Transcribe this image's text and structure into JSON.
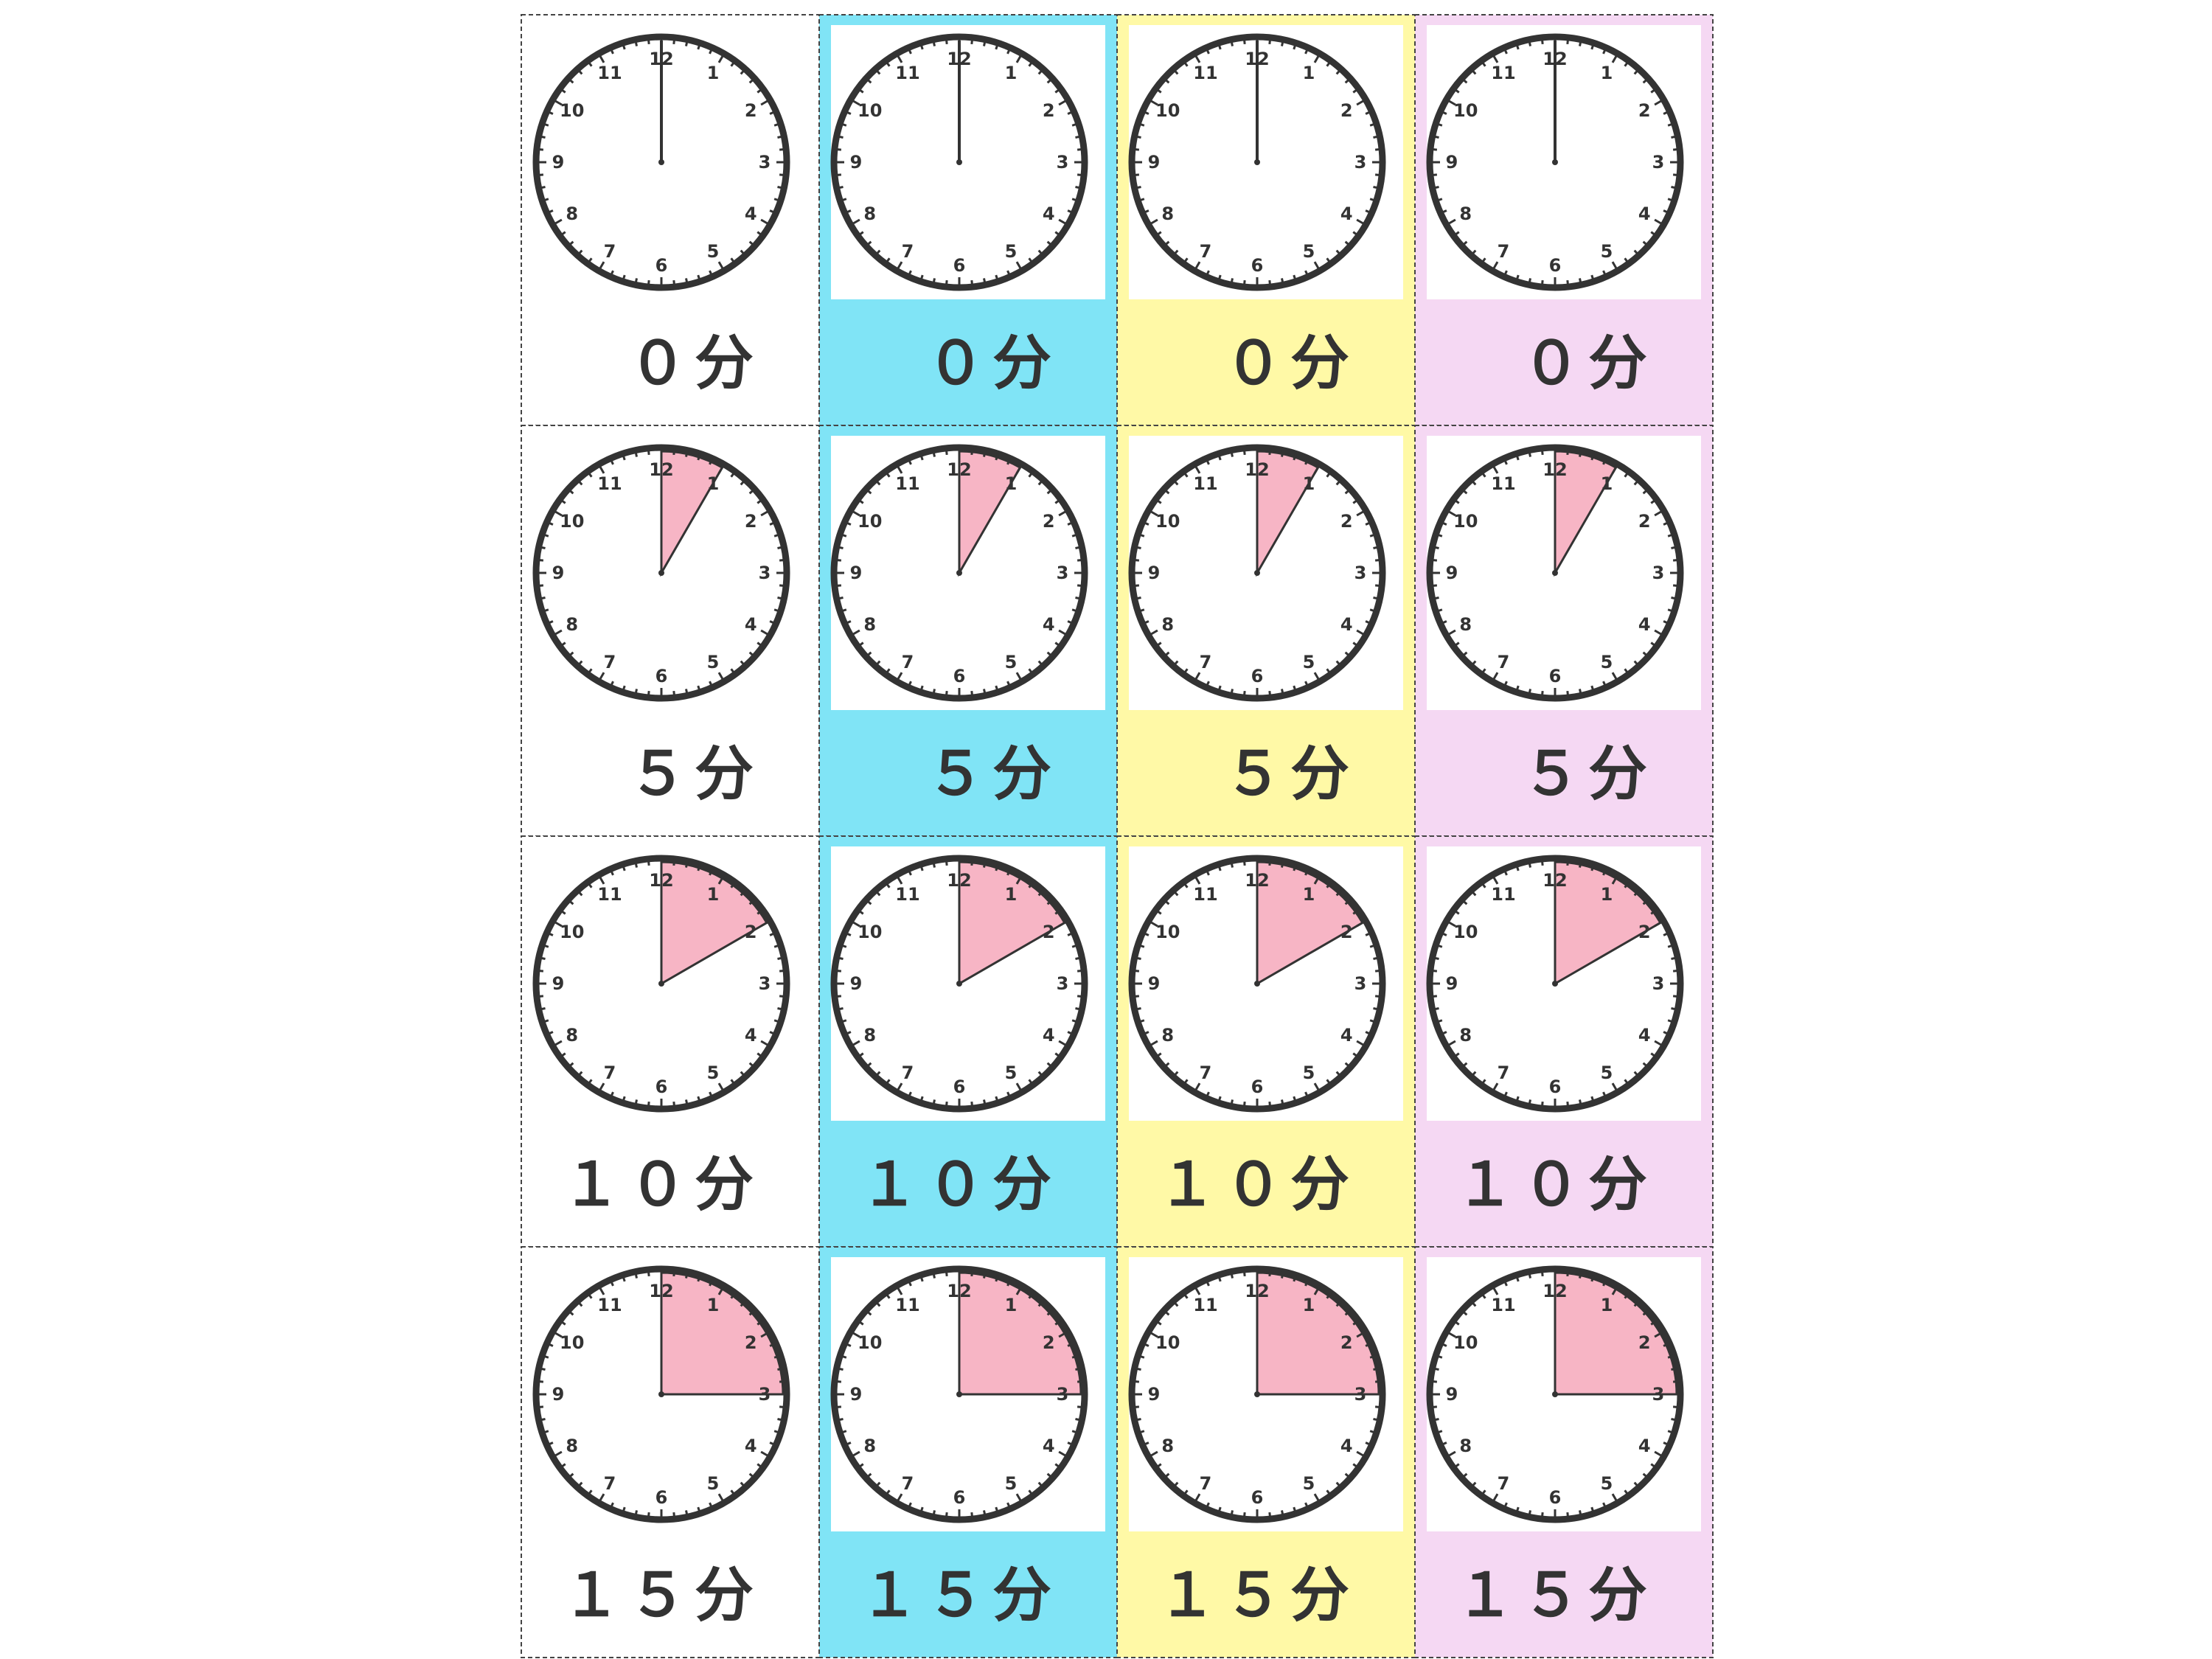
{
  "clock_numerals": [
    "12",
    "1",
    "2",
    "3",
    "4",
    "5",
    "6",
    "7",
    "8",
    "9",
    "10",
    "11"
  ],
  "columns": [
    {
      "color": "#ffffff"
    },
    {
      "color": "#80e4f6"
    },
    {
      "color": "#fff9a6"
    },
    {
      "color": "#f5d8f3"
    }
  ],
  "rows": [
    {
      "label": "０分",
      "minutes": 0
    },
    {
      "label": "５分",
      "minutes": 5
    },
    {
      "label": "１０分",
      "minutes": 10
    },
    {
      "label": "１５分",
      "minutes": 15
    }
  ]
}
